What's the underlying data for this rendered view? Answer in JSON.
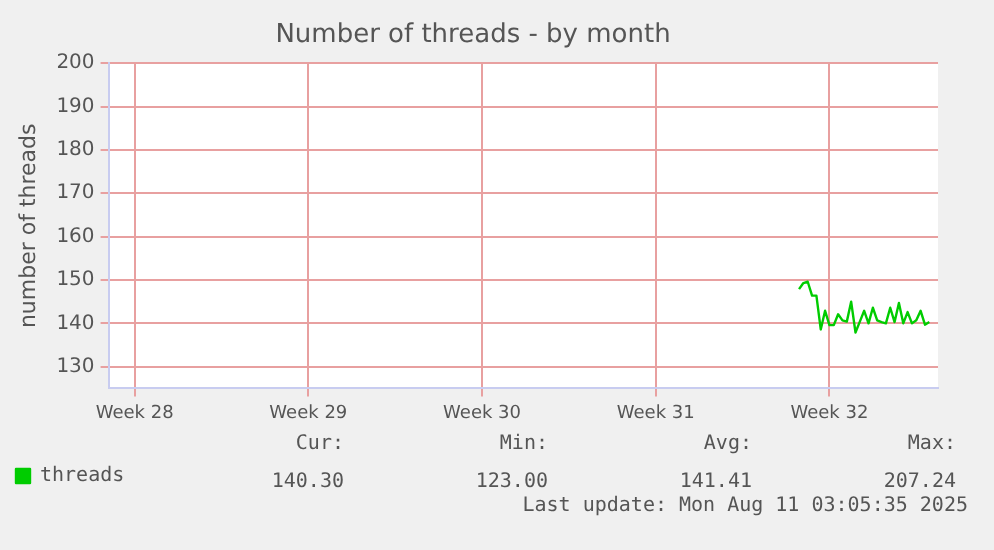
{
  "chart_data": {
    "type": "line",
    "title": "Number of threads - by month",
    "ylabel": "number of threads",
    "categories": [
      null,
      null,
      null,
      null,
      null,
      null,
      "Week 28",
      null,
      null,
      null,
      null,
      null,
      null,
      null,
      null,
      null,
      null,
      null,
      null,
      null,
      null,
      null,
      null,
      null,
      null,
      null,
      null,
      null,
      null,
      null,
      null,
      null,
      null,
      null,
      null,
      null,
      null,
      null,
      null,
      null,
      null,
      null,
      null,
      null,
      null,
      null,
      "Week 29",
      null,
      null,
      null,
      null,
      null,
      null,
      null,
      null,
      null,
      null,
      null,
      null,
      null,
      null,
      null,
      null,
      null,
      null,
      null,
      null,
      null,
      null,
      null,
      null,
      null,
      null,
      null,
      null,
      null,
      null,
      null,
      null,
      null,
      null,
      null,
      null,
      null,
      null,
      null,
      "Week 30",
      null,
      null,
      null,
      null,
      null,
      null,
      null,
      null,
      null,
      null,
      null,
      null,
      null,
      null,
      null,
      null,
      null,
      null,
      null,
      null,
      null,
      null,
      null,
      null,
      null,
      null,
      null,
      null,
      null,
      null,
      null,
      null,
      null,
      null,
      null,
      null,
      null,
      null,
      null,
      "Week 31",
      null,
      null,
      null,
      null,
      null,
      null,
      null,
      null,
      null,
      null,
      null,
      null,
      null,
      null,
      null,
      null,
      null,
      null,
      null,
      null,
      null,
      null,
      null,
      null,
      null,
      null,
      null,
      null,
      null,
      null,
      null,
      null,
      null,
      null,
      null,
      null,
      null,
      null,
      null,
      "Week 32",
      null,
      null,
      null,
      null,
      null,
      null,
      null,
      null,
      null,
      null,
      null,
      null,
      null,
      null,
      null,
      null,
      null,
      null,
      null,
      null,
      null,
      null,
      null,
      null,
      null
    ],
    "ylim": [
      125,
      200
    ],
    "yticks": [
      130,
      140,
      150,
      160,
      170,
      180,
      190,
      200
    ],
    "grid": true,
    "legend": "bottom left",
    "marker": "none",
    "line_style": "solid",
    "series": [
      {
        "name": "threads",
        "color": "#00cc00",
        "values": [
          null,
          null,
          null,
          null,
          null,
          null,
          null,
          null,
          null,
          null,
          null,
          null,
          null,
          null,
          null,
          null,
          null,
          null,
          null,
          null,
          null,
          null,
          null,
          null,
          null,
          null,
          null,
          null,
          null,
          null,
          null,
          null,
          null,
          null,
          null,
          null,
          null,
          null,
          null,
          null,
          null,
          null,
          null,
          null,
          null,
          null,
          null,
          null,
          null,
          null,
          null,
          null,
          null,
          null,
          null,
          null,
          null,
          null,
          null,
          null,
          null,
          null,
          null,
          null,
          null,
          null,
          null,
          null,
          null,
          null,
          null,
          null,
          null,
          null,
          null,
          null,
          null,
          null,
          null,
          null,
          null,
          null,
          null,
          null,
          null,
          null,
          null,
          null,
          null,
          null,
          null,
          null,
          null,
          null,
          null,
          null,
          null,
          null,
          null,
          null,
          null,
          null,
          null,
          null,
          null,
          null,
          null,
          null,
          null,
          null,
          null,
          null,
          null,
          null,
          null,
          null,
          null,
          null,
          null,
          null,
          null,
          null,
          null,
          null,
          null,
          null,
          null,
          null,
          null,
          null,
          null,
          null,
          null,
          null,
          null,
          null,
          null,
          null,
          null,
          null,
          null,
          null,
          null,
          null,
          null,
          null,
          null,
          null,
          null,
          null,
          null,
          null,
          null,
          null,
          null,
          null,
          null,
          null,
          null,
          147.9,
          149.3,
          149.6,
          146.4,
          146.4,
          138.6,
          142.9,
          139.6,
          139.6,
          142.1,
          140.7,
          140.4,
          145,
          137.9,
          140.4,
          142.9,
          140,
          143.6,
          140.7,
          140.3,
          140,
          143.6,
          140.3,
          144.7,
          140,
          142.6,
          140,
          140.7,
          142.9,
          139.7,
          140.3,
          null,
          null
        ]
      }
    ],
    "annotations": [
      "Cur:",
      "140.30",
      "Min:",
      "123.00",
      "Avg:",
      "141.41",
      "Max:",
      "207.24",
      "Last update: Mon Aug 11 03:05:35 2025"
    ]
  }
}
